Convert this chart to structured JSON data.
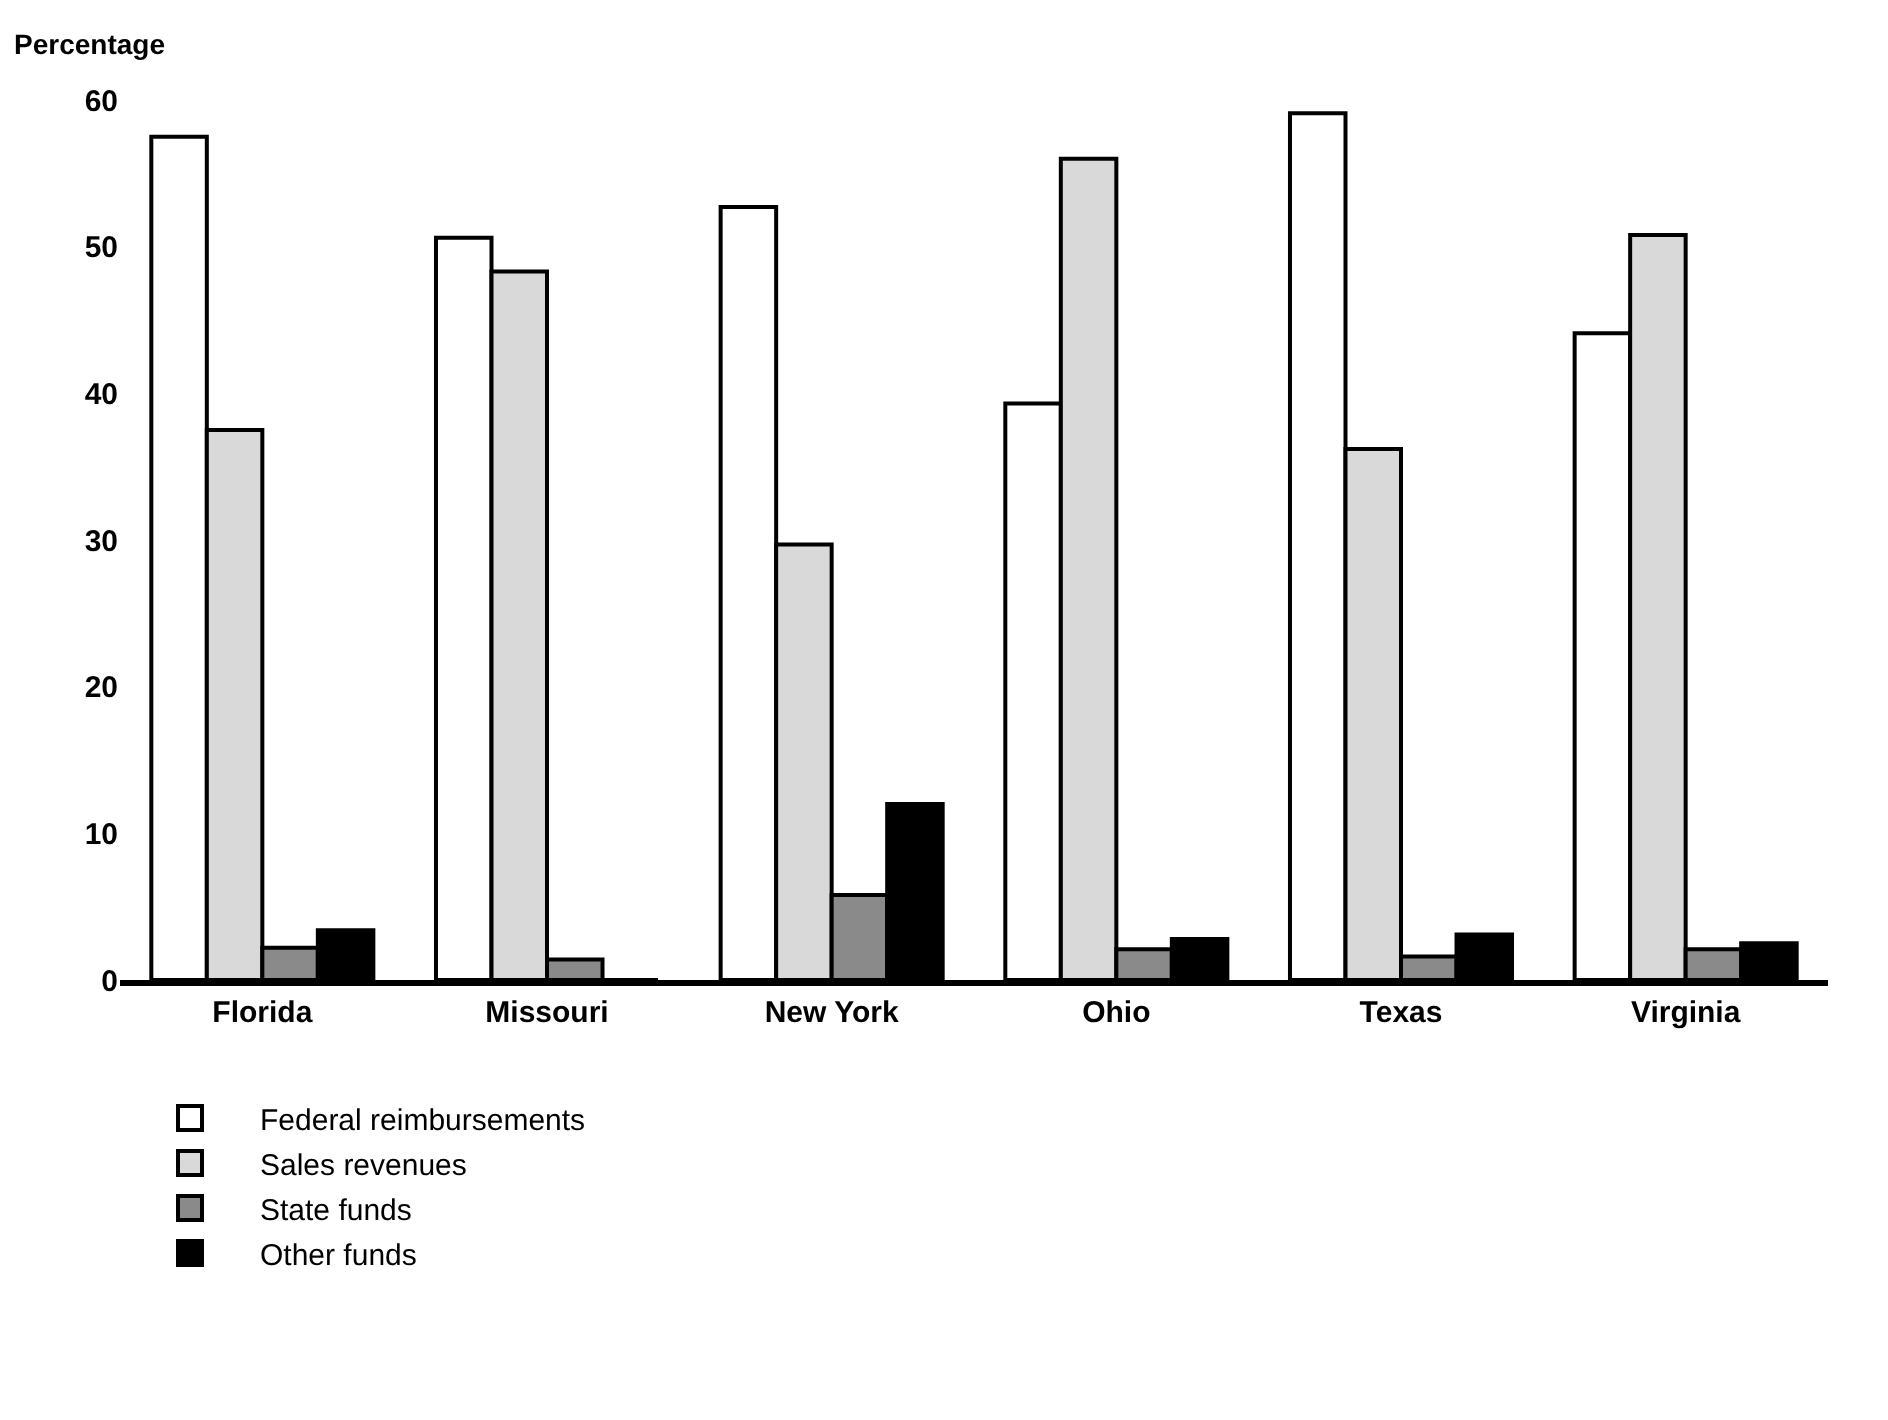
{
  "chart_data": {
    "type": "bar",
    "ylabel": "Percentage",
    "categories": [
      "Florida",
      "Missouri",
      "New York",
      "Ohio",
      "Texas",
      "Virginia"
    ],
    "series": [
      {
        "name": "Federal reimbursements",
        "color": "#ffffff",
        "values": [
          57.5,
          50.6,
          52.7,
          39.3,
          59.1,
          44.1
        ]
      },
      {
        "name": "Sales revenues",
        "color": "#d9d9d9",
        "values": [
          37.5,
          48.3,
          29.7,
          56.0,
          36.2,
          50.8
        ]
      },
      {
        "name": "State funds",
        "color": "#8a8a8a",
        "values": [
          2.2,
          1.4,
          5.8,
          2.1,
          1.6,
          2.1
        ]
      },
      {
        "name": "Other funds",
        "color": "#000000",
        "values": [
          3.4,
          0,
          12.0,
          2.8,
          3.1,
          2.5
        ]
      }
    ],
    "ylim": [
      0,
      60
    ],
    "yticks": [
      0,
      10,
      20,
      30,
      40,
      50,
      60
    ],
    "grid": false,
    "legend": "bottom left"
  }
}
